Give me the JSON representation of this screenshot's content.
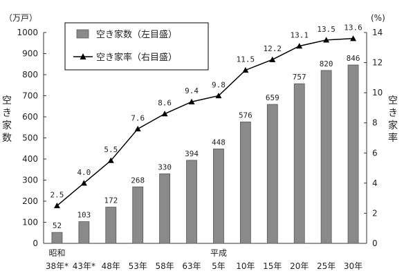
{
  "chart_data": {
    "type": "bar+line",
    "categories": [
      {
        "era": "昭和",
        "label": "38年*"
      },
      {
        "era": "",
        "label": "43年*"
      },
      {
        "era": "",
        "label": "48年"
      },
      {
        "era": "",
        "label": "53年"
      },
      {
        "era": "",
        "label": "58年"
      },
      {
        "era": "",
        "label": "63年"
      },
      {
        "era": "平成",
        "label": "5年"
      },
      {
        "era": "",
        "label": "10年"
      },
      {
        "era": "",
        "label": "15年"
      },
      {
        "era": "",
        "label": "20年"
      },
      {
        "era": "",
        "label": "25年"
      },
      {
        "era": "",
        "label": "30年"
      }
    ],
    "series": [
      {
        "name": "空き家数（左目盛）",
        "type": "bar",
        "axis": "left",
        "values": [
          52,
          103,
          172,
          268,
          330,
          394,
          448,
          576,
          659,
          757,
          820,
          846
        ],
        "labels": [
          "52",
          "103",
          "172",
          "268",
          "330",
          "394",
          "448",
          "576",
          "659",
          "757",
          "820",
          "846"
        ],
        "color": "#8a8a8a"
      },
      {
        "name": "空き家率（右目盛）",
        "type": "line",
        "axis": "right",
        "marker": "triangle",
        "values": [
          2.5,
          4.0,
          5.5,
          7.6,
          8.6,
          9.4,
          9.8,
          11.5,
          12.2,
          13.1,
          13.5,
          13.6
        ],
        "labels": [
          "2.5",
          "4.0",
          "5.5",
          "7.6",
          "8.6",
          "9.4",
          "9.8",
          "11.5",
          "12.2",
          "13.1",
          "13.5",
          "13.6"
        ],
        "color": "#000000"
      }
    ],
    "y_left": {
      "unit": "（万戸）",
      "title": "空き家数",
      "range": [
        0,
        1000
      ],
      "ticks": [
        "0",
        "100",
        "200",
        "300",
        "400",
        "500",
        "600",
        "700",
        "800",
        "900",
        "1000"
      ]
    },
    "y_right": {
      "unit": "(%)",
      "title": "空き家率",
      "range": [
        0,
        14
      ],
      "ticks": [
        "0",
        "2",
        "4",
        "6",
        "8",
        "10",
        "12",
        "14"
      ]
    },
    "grid": false,
    "legend_position": "top-left"
  }
}
